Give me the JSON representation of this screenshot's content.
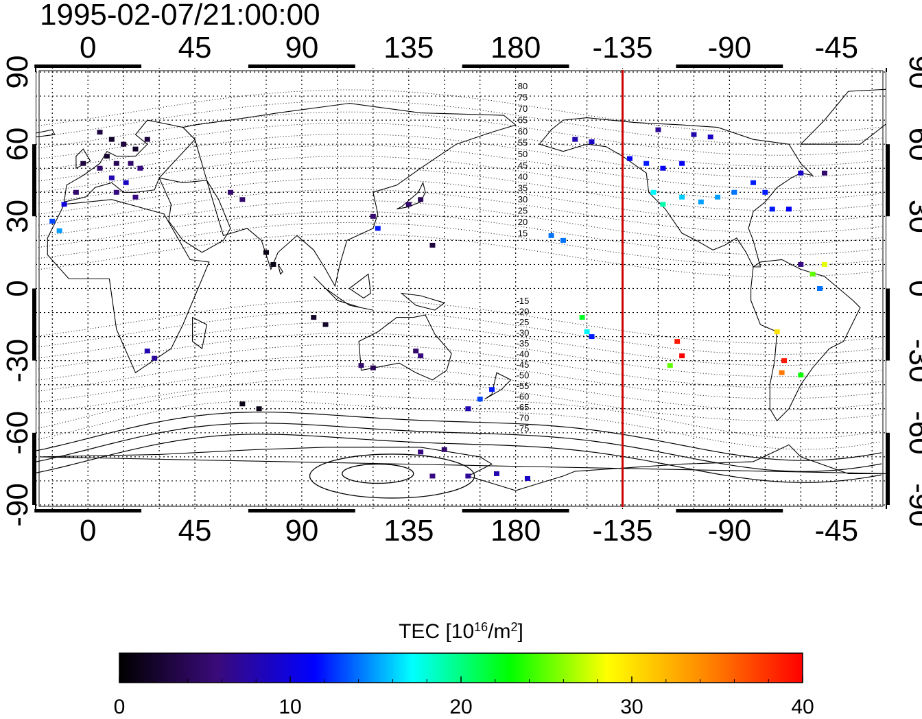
{
  "timestamp": "1995-02-07/21:00:00",
  "map": {
    "x_ticks": [
      "0",
      "45",
      "90",
      "135",
      "180",
      "-135",
      "-90",
      "-45"
    ],
    "y_ticks": [
      "90",
      "60",
      "30",
      "0",
      "-30",
      "-60",
      "-90"
    ],
    "lon_values": [
      0,
      45,
      90,
      135,
      180,
      225,
      270,
      315
    ],
    "lat_values": [
      90,
      60,
      30,
      0,
      -30,
      -60,
      -90
    ],
    "lon_range": [
      -22,
      336
    ],
    "lat_range": [
      -92,
      92
    ],
    "terminator_lon": -135,
    "terminator_color": "#cc0000",
    "mag_lat_labels_north": [
      "80",
      "75",
      "70",
      "65",
      "60",
      "55",
      "50",
      "45",
      "40",
      "35",
      "30",
      "25",
      "20",
      "15"
    ],
    "mag_lat_labels_south": [
      "-15",
      "-20",
      "-25",
      "-30",
      "-35",
      "-40",
      "-45",
      "-50",
      "-55",
      "-60",
      "-65",
      "-70",
      "-75"
    ],
    "tec_points": [
      {
        "lon": 5,
        "lat": 65,
        "tec": 3
      },
      {
        "lon": 10,
        "lat": 62,
        "tec": 2
      },
      {
        "lon": 15,
        "lat": 60,
        "tec": 3
      },
      {
        "lon": 20,
        "lat": 58,
        "tec": 2
      },
      {
        "lon": 25,
        "lat": 62,
        "tec": 3
      },
      {
        "lon": 8,
        "lat": 55,
        "tec": 2
      },
      {
        "lon": 12,
        "lat": 52,
        "tec": 4
      },
      {
        "lon": 18,
        "lat": 52,
        "tec": 5
      },
      {
        "lon": 22,
        "lat": 50,
        "tec": 6
      },
      {
        "lon": 5,
        "lat": 50,
        "tec": 5
      },
      {
        "lon": -2,
        "lat": 52,
        "tec": 3
      },
      {
        "lon": 10,
        "lat": 46,
        "tec": 8
      },
      {
        "lon": 16,
        "lat": 44,
        "tec": 9
      },
      {
        "lon": -5,
        "lat": 40,
        "tec": 5
      },
      {
        "lon": 12,
        "lat": 40,
        "tec": 6
      },
      {
        "lon": 20,
        "lat": 38,
        "tec": 6
      },
      {
        "lon": -10,
        "lat": 35,
        "tec": 10
      },
      {
        "lon": -15,
        "lat": 28,
        "tec": 13
      },
      {
        "lon": -12,
        "lat": 24,
        "tec": 15
      },
      {
        "lon": 60,
        "lat": 40,
        "tec": 5
      },
      {
        "lon": 65,
        "lat": 37,
        "tec": 5
      },
      {
        "lon": 75,
        "lat": 15,
        "tec": 1
      },
      {
        "lon": 78,
        "lat": 10,
        "tec": 1
      },
      {
        "lon": 120,
        "lat": 30,
        "tec": 5
      },
      {
        "lon": 122,
        "lat": 25,
        "tec": 12
      },
      {
        "lon": 135,
        "lat": 35,
        "tec": 5
      },
      {
        "lon": 140,
        "lat": 37,
        "tec": 4
      },
      {
        "lon": 145,
        "lat": 18,
        "tec": 3
      },
      {
        "lon": 95,
        "lat": -12,
        "tec": 2
      },
      {
        "lon": 100,
        "lat": -15,
        "tec": 2
      },
      {
        "lon": 115,
        "lat": -32,
        "tec": 5
      },
      {
        "lon": 120,
        "lat": -33,
        "tec": 4
      },
      {
        "lon": 138,
        "lat": -26,
        "tec": 5
      },
      {
        "lon": 140,
        "lat": -28,
        "tec": 6
      },
      {
        "lon": 25,
        "lat": -26,
        "tec": 8
      },
      {
        "lon": 28,
        "lat": -29,
        "tec": 7
      },
      {
        "lon": 65,
        "lat": -48,
        "tec": 1
      },
      {
        "lon": 72,
        "lat": -50,
        "tec": 1
      },
      {
        "lon": 170,
        "lat": -42,
        "tec": 12
      },
      {
        "lon": 165,
        "lat": -46,
        "tec": 13
      },
      {
        "lon": 160,
        "lat": -50,
        "tec": 8
      },
      {
        "lon": 140,
        "lat": -68,
        "tec": 6
      },
      {
        "lon": 150,
        "lat": -67,
        "tec": 5
      },
      {
        "lon": 145,
        "lat": -78,
        "tec": 6
      },
      {
        "lon": 160,
        "lat": -78,
        "tec": 7
      },
      {
        "lon": 172,
        "lat": -77,
        "tec": 8
      },
      {
        "lon": 185,
        "lat": -79,
        "tec": 9
      },
      {
        "lon": 195,
        "lat": 22,
        "tec": 14
      },
      {
        "lon": 200,
        "lat": 20,
        "tec": 14
      },
      {
        "lon": 205,
        "lat": 62,
        "tec": 8
      },
      {
        "lon": 212,
        "lat": 61,
        "tec": 9
      },
      {
        "lon": 208,
        "lat": -12,
        "tec": 22
      },
      {
        "lon": 210,
        "lat": -18,
        "tec": 17
      },
      {
        "lon": 212,
        "lat": -20,
        "tec": 12
      },
      {
        "lon": 228,
        "lat": 54,
        "tec": 11
      },
      {
        "lon": 235,
        "lat": 52,
        "tec": 12
      },
      {
        "lon": 242,
        "lat": 50,
        "tec": 11
      },
      {
        "lon": 250,
        "lat": 52,
        "tec": 11
      },
      {
        "lon": 238,
        "lat": 40,
        "tec": 17
      },
      {
        "lon": 242,
        "lat": 35,
        "tec": 19
      },
      {
        "lon": 250,
        "lat": 38,
        "tec": 16
      },
      {
        "lon": 258,
        "lat": 36,
        "tec": 15
      },
      {
        "lon": 265,
        "lat": 38,
        "tec": 15
      },
      {
        "lon": 272,
        "lat": 40,
        "tec": 14
      },
      {
        "lon": 280,
        "lat": 44,
        "tec": 12
      },
      {
        "lon": 285,
        "lat": 40,
        "tec": 12
      },
      {
        "lon": 288,
        "lat": 33,
        "tec": 12
      },
      {
        "lon": 295,
        "lat": 33,
        "tec": 11
      },
      {
        "lon": 300,
        "lat": 48,
        "tec": 9
      },
      {
        "lon": 310,
        "lat": 48,
        "tec": 5
      },
      {
        "lon": 240,
        "lat": 66,
        "tec": 7
      },
      {
        "lon": 255,
        "lat": 64,
        "tec": 8
      },
      {
        "lon": 262,
        "lat": 63,
        "tec": 9
      },
      {
        "lon": 248,
        "lat": -22,
        "tec": 39
      },
      {
        "lon": 250,
        "lat": -28,
        "tec": 40
      },
      {
        "lon": 245,
        "lat": -32,
        "tec": 25
      },
      {
        "lon": 290,
        "lat": -18,
        "tec": 30
      },
      {
        "lon": 293,
        "lat": -30,
        "tec": 39
      },
      {
        "lon": 292,
        "lat": -35,
        "tec": 35
      },
      {
        "lon": 300,
        "lat": -36,
        "tec": 23
      },
      {
        "lon": 305,
        "lat": 6,
        "tec": 25
      },
      {
        "lon": 310,
        "lat": 10,
        "tec": 28
      },
      {
        "lon": 308,
        "lat": 0,
        "tec": 14
      },
      {
        "lon": 300,
        "lat": 10,
        "tec": 6
      }
    ]
  },
  "colorbar": {
    "title_prefix": "TEC  [10",
    "title_sup1": "16",
    "title_mid": "/m",
    "title_sup2": "2",
    "title_suffix": "]",
    "min": 0,
    "max": 40,
    "tick_labels": [
      "0",
      "10",
      "20",
      "30",
      "40"
    ],
    "stops": [
      "#000000",
      "#3a0a7a",
      "#0000ff",
      "#00ffff",
      "#00ff00",
      "#ffff00",
      "#ff8800",
      "#ff0000"
    ]
  }
}
